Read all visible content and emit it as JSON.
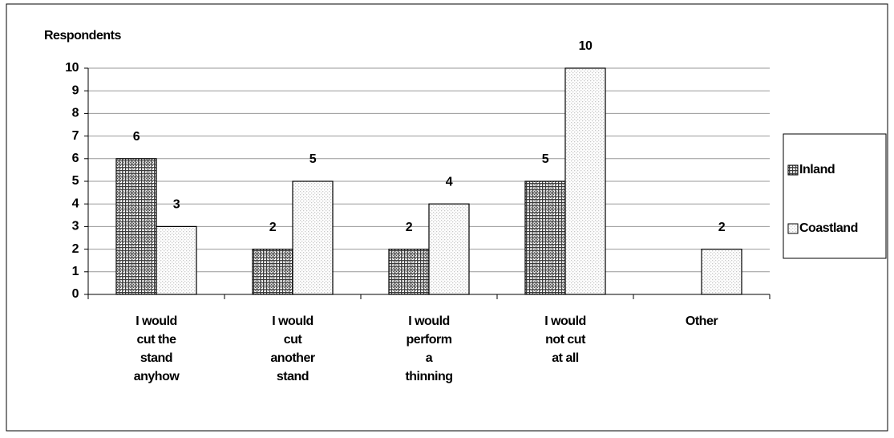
{
  "chart_data": {
    "type": "bar",
    "y_label": "Respondents",
    "categories": [
      [
        "I would",
        "cut the",
        "stand",
        "anyhow"
      ],
      [
        "I would",
        "cut",
        "another",
        "stand"
      ],
      [
        "I would",
        "perform",
        "a",
        "thinning"
      ],
      [
        "I would",
        "not cut",
        "at all"
      ],
      [
        "Other"
      ]
    ],
    "series": [
      {
        "name": "Inland",
        "color": "#3a3a3a",
        "values": [
          6,
          2,
          2,
          5,
          null
        ]
      },
      {
        "name": "Coastland",
        "color": "#c8c8c8",
        "values": [
          3,
          5,
          4,
          10,
          2
        ]
      }
    ],
    "ylim": [
      0,
      10
    ],
    "yticks": [
      0,
      1,
      2,
      3,
      4,
      5,
      6,
      7,
      8,
      9,
      10
    ],
    "grid": true,
    "legend": "right"
  }
}
